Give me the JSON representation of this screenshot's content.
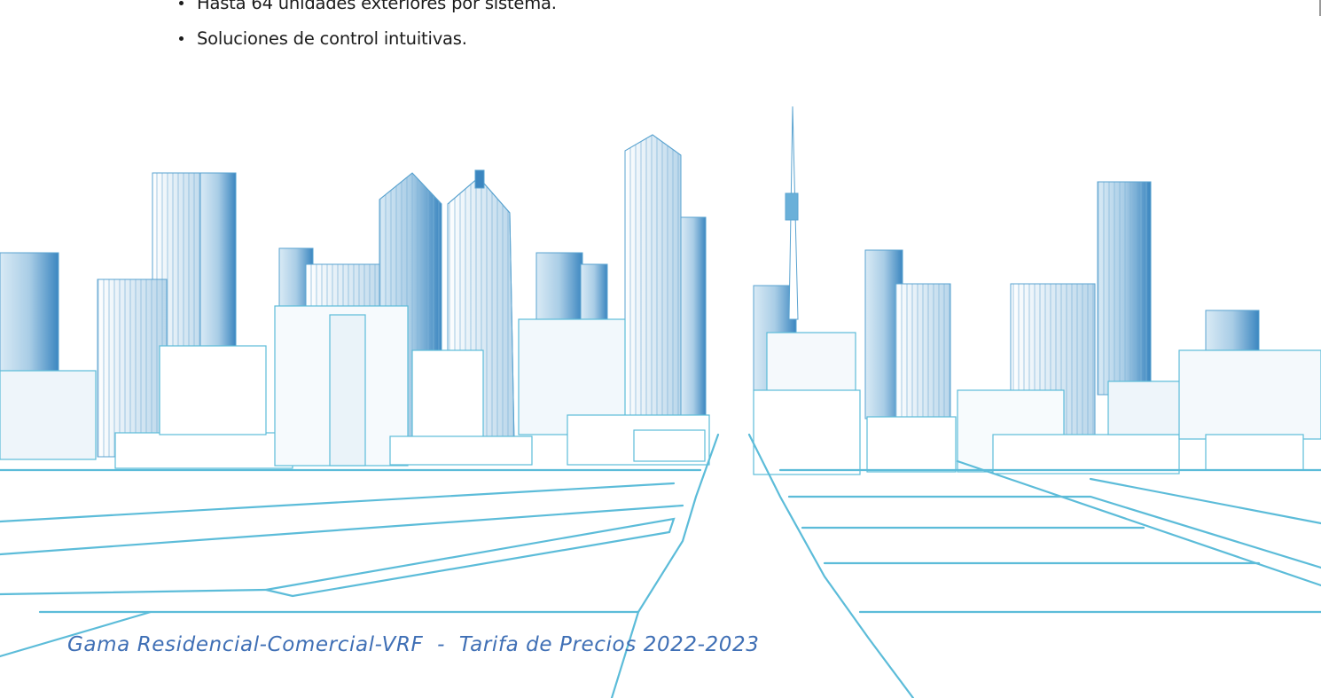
{
  "bullets": [
    "Hasta 64 unidades exteriores por sistema.",
    "Soluciones de control intuitivas."
  ],
  "footer": "Gama Residencial-Comercial-VRF  -  Tarifa de Precios 2022-2023",
  "colors": {
    "text": "#1c1c1c",
    "footer": "#3f6fb5",
    "line": "#5cbcd9",
    "building_blue": "#3b86c0"
  }
}
